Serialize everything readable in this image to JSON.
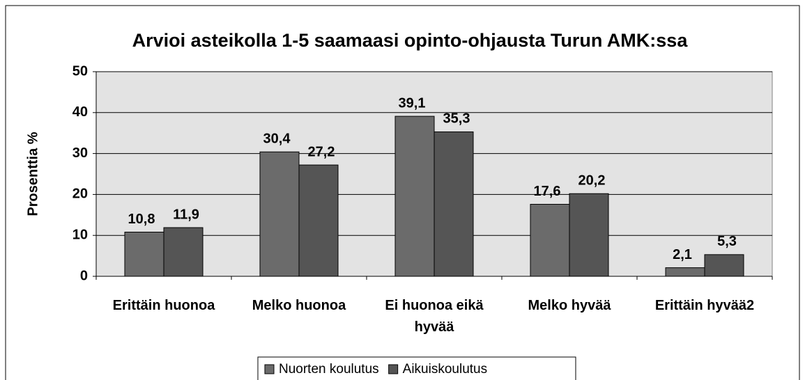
{
  "chart_data": {
    "type": "bar",
    "title": "Arvioi asteikolla 1-5 saamaasi opinto-ohjausta Turun AMK:ssa",
    "y_label": "Prosenttia %",
    "categories": [
      "Erittäin huonoa",
      "Melko huonoa",
      "Ei huonoa eikä hyvää",
      "Melko hyvää",
      "Erittäin hyvää2"
    ],
    "series": [
      {
        "name": "Nuorten koulutus",
        "color": "#6b6b6b",
        "values": [
          10.8,
          30.4,
          39.1,
          17.6,
          2.1
        ],
        "value_labels": [
          "10,8",
          "30,4",
          "39,1",
          "17,6",
          "2,1"
        ]
      },
      {
        "name": "Aikuiskoulutus",
        "color": "#555555",
        "values": [
          11.9,
          27.2,
          35.3,
          20.2,
          5.3
        ],
        "value_labels": [
          "11,9",
          "27,2",
          "35,3",
          "20,2",
          "5,3"
        ]
      }
    ],
    "ylim": [
      0,
      50
    ],
    "yticks": [
      0,
      10,
      20,
      30,
      40,
      50
    ],
    "grid": true,
    "legend": "bottom"
  }
}
